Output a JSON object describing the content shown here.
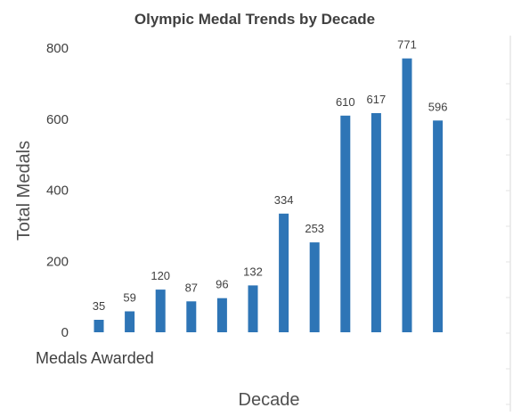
{
  "chart_data": {
    "type": "bar",
    "title": "Olympic Medal Trends by Decade",
    "xlabel": "Decade",
    "ylabel": "Total Medals",
    "category_axis_label": "Medals Awarded",
    "categories": [
      "",
      "",
      "",
      "",
      "",
      "",
      "",
      "",
      "",
      "",
      "",
      ""
    ],
    "series": [
      {
        "values": [
          35,
          59,
          120,
          87,
          96,
          132,
          334,
          253,
          610,
          617,
          771,
          596
        ]
      }
    ],
    "ylim": [
      0,
      800
    ],
    "yticks": [
      0,
      200,
      400,
      600,
      800
    ],
    "grid": false,
    "data_labels": true,
    "bar_color": "#2e75b6"
  }
}
